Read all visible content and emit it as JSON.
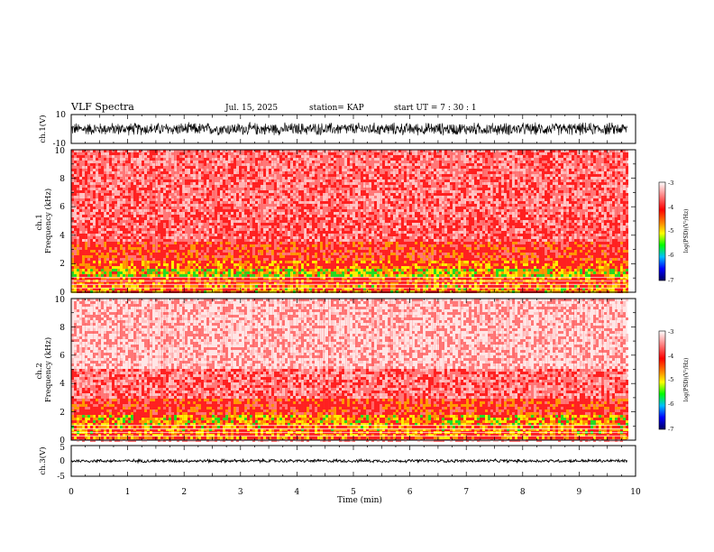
{
  "header": {
    "title": "VLF Spectra",
    "date": "Jul. 15, 2025",
    "station": "station= KAP",
    "start_time": "start UT =  7 : 30 : 1"
  },
  "colors": {
    "line": "#000000",
    "background": "#ffffff",
    "colorbar_stops": [
      "#ffffff",
      "#ff0000",
      "#ffa500",
      "#ffff00",
      "#00ff00",
      "#00bfff",
      "#0000ff",
      "#000080"
    ]
  },
  "chart_data": [
    {
      "type": "line",
      "panel": "ch1-waveform",
      "ylabel": "ch.1(V)",
      "ylim": [
        -10,
        10
      ],
      "yticks": [
        "10",
        "-10"
      ],
      "xlim": [
        0,
        10
      ],
      "trace_center": 0,
      "trace_amplitude": 5,
      "trace_end": 9.85
    },
    {
      "type": "heatmap",
      "panel": "ch1-spectrogram",
      "ylabel": "ch.1\nFrequency (kHz)",
      "ylim": [
        0,
        10
      ],
      "yticks": [
        "0",
        "2",
        "4",
        "6",
        "8",
        "10"
      ],
      "xlim": [
        0,
        10
      ],
      "data_end": 9.85,
      "bands": [
        {
          "f": [
            0.0,
            0.5
          ],
          "level": 0.75
        },
        {
          "f": [
            0.5,
            1.0
          ],
          "level": 0.65
        },
        {
          "f": [
            1.0,
            1.7
          ],
          "level": 0.9
        },
        {
          "f": [
            1.7,
            2.2
          ],
          "level": 0.7
        },
        {
          "f": [
            2.2,
            3.5
          ],
          "level": 0.55
        },
        {
          "f": [
            3.5,
            5.5
          ],
          "level": 0.35
        },
        {
          "f": [
            5.5,
            10.0
          ],
          "level": 0.3
        }
      ],
      "colorbar": {
        "label": "log(PSD)(V²/Hz)",
        "ticks": [
          "-3",
          "-4",
          "-5",
          "-6",
          "-7"
        ],
        "range": [
          -7,
          -3
        ]
      }
    },
    {
      "type": "heatmap",
      "panel": "ch2-spectrogram",
      "ylabel": "ch.2\nFrequency (kHz)",
      "ylim": [
        0,
        10
      ],
      "yticks": [
        "0",
        "2",
        "4",
        "6",
        "8",
        "10"
      ],
      "xlim": [
        0,
        10
      ],
      "data_end": 9.85,
      "bands": [
        {
          "f": [
            0.0,
            0.5
          ],
          "level": 0.7
        },
        {
          "f": [
            0.5,
            1.0
          ],
          "level": 0.75
        },
        {
          "f": [
            1.0,
            1.8
          ],
          "level": 0.8
        },
        {
          "f": [
            1.8,
            3.0
          ],
          "level": 0.55
        },
        {
          "f": [
            3.0,
            5.0
          ],
          "level": 0.3
        },
        {
          "f": [
            5.0,
            10.0
          ],
          "level": 0.12
        }
      ],
      "colorbar": {
        "label": "log(PSD)(V²/Hz)",
        "ticks": [
          "-3",
          "-4",
          "-5",
          "-6",
          "-7"
        ],
        "range": [
          -7,
          -3
        ]
      }
    },
    {
      "type": "line",
      "panel": "ch3-waveform",
      "ylabel": "ch.3(V)",
      "ylim": [
        -5,
        5
      ],
      "yticks": [
        "5",
        "0",
        "-5"
      ],
      "xlim": [
        0,
        10
      ],
      "trace_center": 0,
      "trace_amplitude": 0.6,
      "trace_end": 9.85,
      "xlabel": "Time (min)",
      "xticks": [
        "0",
        "1",
        "2",
        "3",
        "4",
        "5",
        "6",
        "7",
        "8",
        "9",
        "10"
      ]
    }
  ]
}
